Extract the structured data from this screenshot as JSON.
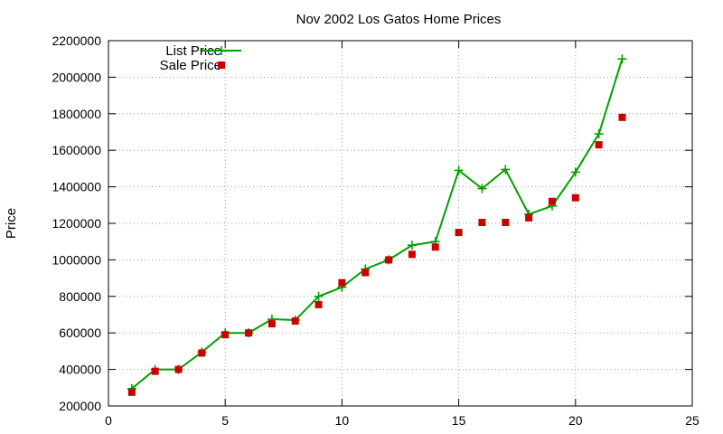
{
  "chart_data": {
    "type": "line",
    "title": "Nov 2002 Los Gatos Home Prices",
    "xlabel": "",
    "ylabel": "Price",
    "xlim": [
      0,
      25
    ],
    "ylim": [
      200000,
      2200000
    ],
    "xticks": [
      "0",
      "5",
      "10",
      "15",
      "20",
      "25"
    ],
    "yticks": [
      "200000",
      "400000",
      "600000",
      "800000",
      "1000000",
      "1200000",
      "1400000",
      "1600000",
      "1800000",
      "2000000",
      "2200000"
    ],
    "grid": true,
    "legend_position": "top-left",
    "series": [
      {
        "name": "List Price",
        "style": "line+cross",
        "color": "#00a000",
        "x": [
          1,
          2,
          3,
          4,
          5,
          6,
          7,
          8,
          9,
          10,
          11,
          12,
          13,
          14,
          15,
          16,
          17,
          18,
          19,
          20,
          21,
          22
        ],
        "y": [
          295000,
          400000,
          400000,
          495000,
          600000,
          600000,
          675000,
          670000,
          800000,
          850000,
          950000,
          1000000,
          1080000,
          1100000,
          1490000,
          1390000,
          1495000,
          1250000,
          1295000,
          1480000,
          1690000,
          2100000
        ]
      },
      {
        "name": "Sale Price",
        "style": "square",
        "color": "#cc0000",
        "x": [
          1,
          2,
          3,
          4,
          5,
          6,
          7,
          8,
          9,
          10,
          11,
          12,
          13,
          14,
          15,
          16,
          17,
          18,
          19,
          20,
          21,
          22
        ],
        "y": [
          275000,
          390000,
          400000,
          490000,
          590000,
          600000,
          650000,
          665000,
          755000,
          875000,
          930000,
          1000000,
          1030000,
          1070000,
          1150000,
          1205000,
          1205000,
          1230000,
          1320000,
          1340000,
          1630000,
          1780000
        ]
      }
    ]
  }
}
